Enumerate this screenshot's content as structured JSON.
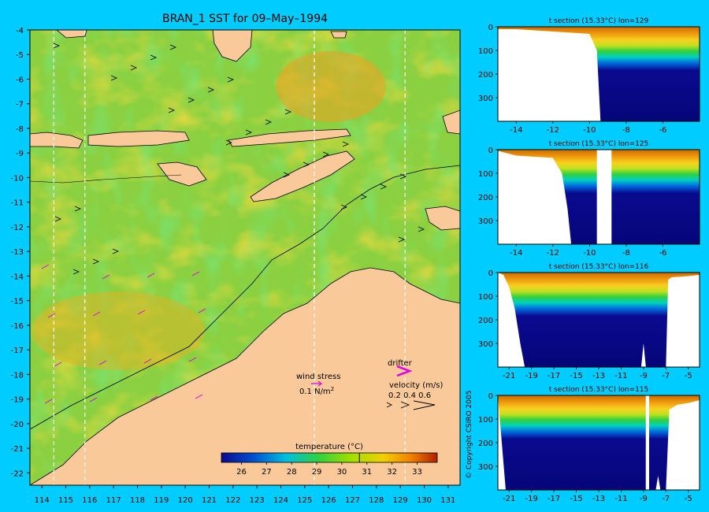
{
  "colors": {
    "page_background": "#00ccff",
    "land": "#f9c999",
    "coastline": "#000000",
    "wind_arrow": "#e000e0",
    "velocity_arrow": "#000000",
    "frame": "#000000"
  },
  "chart_data": [
    {
      "type": "heatmap",
      "title": "BRAN_1 SST for 09–May–1994",
      "xlabel": "",
      "ylabel": "",
      "xlim": [
        113.5,
        131.5
      ],
      "ylim": [
        -22.5,
        -4
      ],
      "x_ticks": [
        114,
        115,
        116,
        117,
        118,
        119,
        120,
        121,
        122,
        123,
        124,
        125,
        126,
        127,
        128,
        129,
        130,
        131
      ],
      "y_ticks": [
        -4,
        -5,
        -6,
        -7,
        -8,
        -9,
        -10,
        -11,
        -12,
        -13,
        -14,
        -15,
        -16,
        -17,
        -18,
        -19,
        -20,
        -21,
        -22
      ],
      "section_lons": [
        114.5,
        115.8,
        125.4,
        129.2
      ],
      "colorbar": {
        "label": "temperature (°C)",
        "ticks": [
          26,
          27,
          28,
          29,
          30,
          31,
          32,
          33
        ],
        "range": [
          25.2,
          33.8
        ],
        "highlight": 30.7
      },
      "legend": {
        "wind_label": "wind stress",
        "wind_scale_prefix": "0.1 N/m",
        "wind_scale_sup": "2",
        "drifter_label": "drifter",
        "velocity_label": "velocity (m/s)",
        "velocity_scale": "0.2 0.4 0.6"
      }
    },
    {
      "type": "heatmap",
      "title": "t section (15.33°C) lon=129",
      "xlim": [
        -15,
        -4
      ],
      "ylim": [
        0,
        400
      ],
      "x_ticks": [
        -14,
        -12,
        -10,
        -8,
        -6
      ],
      "y_ticks": [
        0,
        100,
        200,
        300
      ],
      "land_profile": [
        {
          "x": -15.0,
          "depth": 10
        },
        {
          "x": -14.0,
          "depth": 10
        },
        {
          "x": -13.0,
          "depth": 15
        },
        {
          "x": -12.0,
          "depth": 20
        },
        {
          "x": -11.0,
          "depth": 25
        },
        {
          "x": -10.0,
          "depth": 30
        },
        {
          "x": -9.6,
          "depth": 100
        },
        {
          "x": -9.4,
          "depth": 400
        }
      ]
    },
    {
      "type": "heatmap",
      "title": "t section (15.33°C) lon=125",
      "xlim": [
        -15,
        -4
      ],
      "ylim": [
        0,
        400
      ],
      "x_ticks": [
        -14,
        -12,
        -10,
        -8,
        -6
      ],
      "y_ticks": [
        0,
        100,
        200,
        300
      ],
      "land_profile": [
        {
          "x": -15.0,
          "depth": 5
        },
        {
          "x": -14.0,
          "depth": 25
        },
        {
          "x": -13.0,
          "depth": 30
        },
        {
          "x": -12.0,
          "depth": 35
        },
        {
          "x": -11.5,
          "depth": 100
        },
        {
          "x": -11.2,
          "depth": 250
        },
        {
          "x": -11.0,
          "depth": 400
        }
      ],
      "gaps": [
        {
          "from": -9.6,
          "to": -8.8
        }
      ]
    },
    {
      "type": "heatmap",
      "title": "t section (15.33°C) lon=116",
      "xlim": [
        -22,
        -4
      ],
      "ylim": [
        0,
        400
      ],
      "x_ticks": [
        -21,
        -19,
        -17,
        -15,
        -13,
        -11,
        -9,
        -7,
        -5
      ],
      "y_ticks": [
        0,
        100,
        200,
        300
      ],
      "land_profile": [
        {
          "x": -22.0,
          "depth": 0
        },
        {
          "x": -21.5,
          "depth": 10
        },
        {
          "x": -21.0,
          "depth": 60
        },
        {
          "x": -20.5,
          "depth": 150
        },
        {
          "x": -20.0,
          "depth": 300
        },
        {
          "x": -19.6,
          "depth": 400
        }
      ],
      "right_land_profile": [
        {
          "x": -7.0,
          "depth": 400
        },
        {
          "x": -6.8,
          "depth": 30
        },
        {
          "x": -6.5,
          "depth": 20
        },
        {
          "x": -5.0,
          "depth": 15
        },
        {
          "x": -4.0,
          "depth": 10
        }
      ],
      "spikes": [
        {
          "x": -9.0,
          "depth": 300
        }
      ]
    },
    {
      "type": "heatmap",
      "title": "t section (15.33°C) lon=115",
      "xlim": [
        -22,
        -4
      ],
      "ylim": [
        0,
        400
      ],
      "x_ticks": [
        -21,
        -19,
        -17,
        -15,
        -13,
        -11,
        -9,
        -7,
        -5
      ],
      "y_ticks": [
        0,
        100,
        200,
        300
      ],
      "land_profile": [
        {
          "x": -22.0,
          "depth": 0
        },
        {
          "x": -21.3,
          "depth": 400
        }
      ],
      "right_land_profile": [
        {
          "x": -7.0,
          "depth": 400
        },
        {
          "x": -6.7,
          "depth": 60
        },
        {
          "x": -6.0,
          "depth": 40
        },
        {
          "x": -4.8,
          "depth": 30
        },
        {
          "x": -4.0,
          "depth": 20
        }
      ],
      "spikes": [
        {
          "x": -7.7,
          "depth": 340
        }
      ],
      "gaps": [
        {
          "from": -8.8,
          "to": -8.5
        }
      ]
    }
  ],
  "copyright": "© Copyright CSIRO 2005"
}
